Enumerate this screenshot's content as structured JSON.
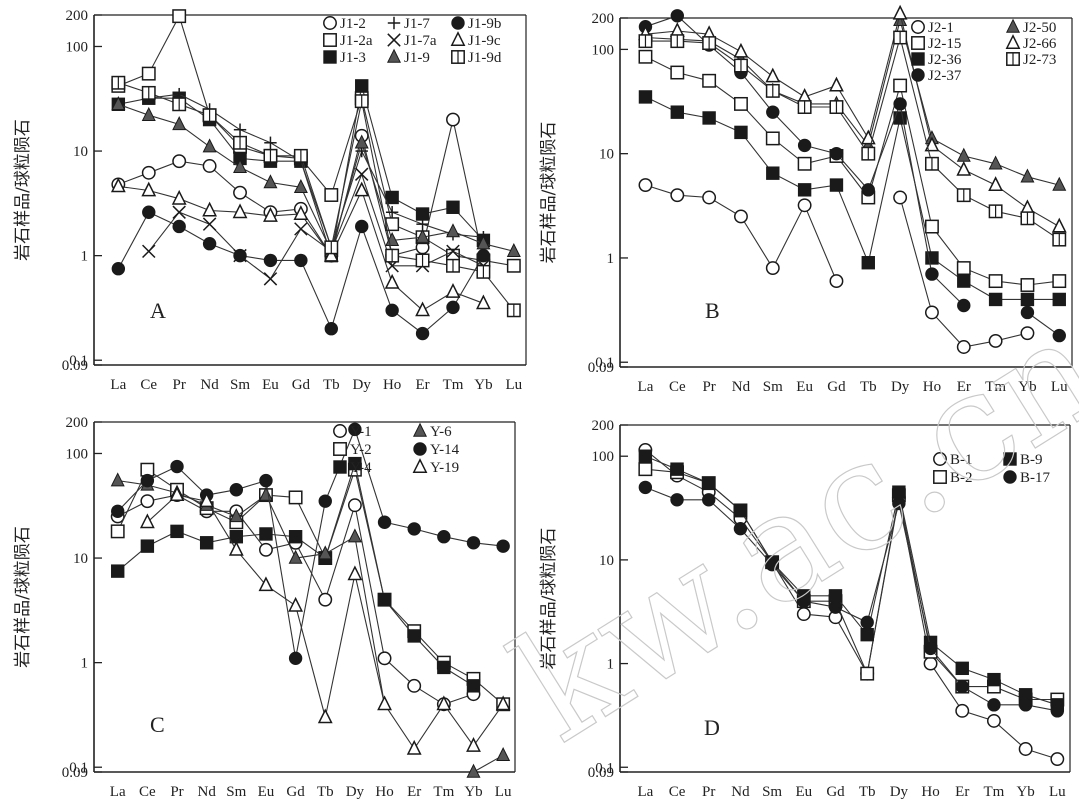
{
  "watermark": "kw.ac.cn",
  "chart_data": [
    {
      "panel": "A",
      "type": "line",
      "ylabel": "岩石样品/球粒陨石",
      "yscale": "log",
      "ylim": [
        0.09,
        200
      ],
      "yticks": [
        0.09,
        0.1,
        1,
        10,
        100,
        200
      ],
      "ytick_labels": [
        "0.09",
        "0.1",
        "1",
        "10",
        "100",
        "200"
      ],
      "categories": [
        "La",
        "Ce",
        "Pr",
        "Nd",
        "Sm",
        "Eu",
        "Gd",
        "Tb",
        "Dy",
        "Ho",
        "Er",
        "Tm",
        "Yb",
        "Lu"
      ],
      "legend_columns": 3,
      "series": [
        {
          "name": "J1-2",
          "marker": "circle-open",
          "values": [
            4.8,
            6.2,
            8.0,
            7.2,
            4.0,
            2.6,
            2.8,
            1.0,
            14,
            1.0,
            1.2,
            20,
            0.9,
            null
          ]
        },
        {
          "name": "J1-2a",
          "marker": "square-open",
          "values": [
            42,
            55,
            195,
            22,
            11,
            9.0,
            8.5,
            3.8,
            32,
            2.0,
            1.5,
            1.0,
            0.9,
            0.8
          ]
        },
        {
          "name": "J1-3",
          "marker": "square-filled",
          "values": [
            28,
            32,
            32,
            20,
            8.5,
            8.0,
            8.0,
            1.0,
            42,
            3.6,
            2.5,
            2.9,
            1.4,
            null
          ]
        },
        {
          "name": "J1-7",
          "marker": "plus",
          "values": [
            null,
            32,
            35,
            25,
            16,
            12,
            8.0,
            1.2,
            10,
            2.6,
            2.0,
            1.6,
            1.5,
            null
          ]
        },
        {
          "name": "J1-7a",
          "marker": "cross",
          "values": [
            null,
            1.1,
            2.6,
            2.0,
            1.0,
            0.6,
            1.8,
            1.1,
            6,
            0.8,
            0.8,
            1.1,
            0.8,
            null
          ]
        },
        {
          "name": "J1-9",
          "marker": "triangle-filled",
          "values": [
            28,
            22,
            18,
            11,
            7.0,
            5.0,
            4.5,
            1.1,
            12,
            1.4,
            1.5,
            1.7,
            1.3,
            1.1
          ]
        },
        {
          "name": "J1-9b",
          "marker": "circle-filled",
          "values": [
            0.75,
            2.6,
            1.9,
            1.3,
            1.0,
            0.9,
            0.9,
            0.2,
            1.9,
            0.3,
            0.18,
            0.32,
            1.0,
            null
          ]
        },
        {
          "name": "J1-9c",
          "marker": "triangle-open",
          "values": [
            4.6,
            4.2,
            3.5,
            2.7,
            2.6,
            2.4,
            2.5,
            1.0,
            4.2,
            0.55,
            0.3,
            0.45,
            0.35,
            null
          ]
        },
        {
          "name": "J1-9d",
          "marker": "square-halved",
          "values": [
            45,
            36,
            28,
            22,
            12,
            9.0,
            9.0,
            1.2,
            30,
            1.0,
            0.9,
            0.8,
            0.7,
            0.3
          ]
        }
      ]
    },
    {
      "panel": "B",
      "type": "line",
      "ylabel": "岩石样品/球粒陨石",
      "yscale": "log",
      "ylim": [
        0.09,
        200
      ],
      "yticks": [
        0.09,
        0.1,
        1,
        10,
        100,
        200
      ],
      "ytick_labels": [
        "0.09",
        "0.1",
        "1",
        "10",
        "100",
        "200"
      ],
      "categories": [
        "La",
        "Ce",
        "Pr",
        "Nd",
        "Sm",
        "Eu",
        "Gd",
        "Tb",
        "Dy",
        "Ho",
        "Er",
        "Tm",
        "Yb",
        "Lu"
      ],
      "legend_columns": 2,
      "series": [
        {
          "name": "J2-1",
          "marker": "circle-open",
          "values": [
            5.0,
            4.0,
            3.8,
            2.5,
            0.8,
            3.2,
            0.6,
            null,
            3.8,
            0.3,
            0.14,
            0.16,
            0.19,
            null
          ]
        },
        {
          "name": "J2-15",
          "marker": "square-open",
          "values": [
            85,
            60,
            50,
            30,
            14,
            8.0,
            9.5,
            3.8,
            45,
            2.0,
            0.8,
            0.6,
            0.55,
            0.6
          ]
        },
        {
          "name": "J2-36",
          "marker": "square-filled",
          "values": [
            35,
            25,
            22,
            16,
            6.5,
            4.5,
            5.0,
            0.9,
            22,
            1.0,
            0.6,
            0.4,
            0.4,
            0.4
          ]
        },
        {
          "name": "J2-37",
          "marker": "circle-filled",
          "values": [
            165,
            210,
            110,
            60,
            25,
            12,
            10,
            4.5,
            30,
            0.7,
            0.35,
            null,
            0.3,
            0.18
          ]
        },
        {
          "name": "J2-50",
          "marker": "triangle-filled",
          "values": [
            130,
            125,
            120,
            80,
            40,
            30,
            30,
            12,
            190,
            14,
            9.5,
            8.0,
            6.0,
            5.0
          ]
        },
        {
          "name": "J2-66",
          "marker": "triangle-open",
          "values": [
            140,
            150,
            140,
            95,
            55,
            35,
            45,
            14,
            220,
            12,
            7.0,
            5.0,
            3.0,
            2.0
          ]
        },
        {
          "name": "J2-73",
          "marker": "square-halved",
          "values": [
            120,
            120,
            115,
            70,
            40,
            28,
            28,
            10,
            130,
            8.0,
            4.0,
            2.8,
            2.4,
            1.5
          ]
        }
      ]
    },
    {
      "panel": "C",
      "type": "line",
      "ylabel": "岩石样品/球粒陨石",
      "yscale": "log",
      "ylim": [
        0.09,
        200
      ],
      "yticks": [
        0.09,
        0.1,
        1,
        10,
        100,
        200
      ],
      "ytick_labels": [
        "0.09",
        "0.1",
        "1",
        "10",
        "100",
        "200"
      ],
      "categories": [
        "La",
        "Ce",
        "Pr",
        "Nd",
        "Sm",
        "Eu",
        "Gd",
        "Tb",
        "Dy",
        "Ho",
        "Er",
        "Tm",
        "Yb",
        "Lu"
      ],
      "legend_columns": 2,
      "series": [
        {
          "name": "Y-1",
          "marker": "circle-open",
          "values": [
            25,
            35,
            40,
            28,
            28,
            12,
            14,
            4.0,
            32,
            1.1,
            0.6,
            0.4,
            0.5,
            null
          ]
        },
        {
          "name": "Y-2",
          "marker": "square-open",
          "values": [
            18,
            70,
            45,
            30,
            22,
            40,
            38,
            10,
            70,
            4.0,
            2.0,
            1.0,
            0.7,
            0.4
          ]
        },
        {
          "name": "Y-4",
          "marker": "square-filled",
          "values": [
            7.5,
            13,
            18,
            14,
            16,
            17,
            16,
            10,
            80,
            4.0,
            1.8,
            0.9,
            0.6,
            null
          ]
        },
        {
          "name": "Y-6",
          "marker": "triangle-filled",
          "values": [
            55,
            50,
            42,
            32,
            25,
            40,
            10,
            11,
            16,
            0.4,
            null,
            null,
            0.09,
            0.13
          ]
        },
        {
          "name": "Y-14",
          "marker": "circle-filled",
          "values": [
            28,
            55,
            75,
            40,
            45,
            55,
            1.1,
            35,
            170,
            22,
            19,
            16,
            14,
            13
          ]
        },
        {
          "name": "Y-19",
          "marker": "triangle-open",
          "values": [
            null,
            22,
            40,
            35,
            12,
            5.5,
            3.5,
            0.3,
            7.0,
            0.4,
            0.15,
            0.4,
            0.16,
            0.4
          ]
        }
      ]
    },
    {
      "panel": "D",
      "type": "line",
      "ylabel": "岩石样品/球粒陨石",
      "yscale": "log",
      "ylim": [
        0.09,
        200
      ],
      "yticks": [
        0.09,
        0.1,
        1,
        10,
        100,
        200
      ],
      "ytick_labels": [
        "0.09",
        "0.1",
        "1",
        "10",
        "100",
        "200"
      ],
      "categories": [
        "La",
        "Ce",
        "Pr",
        "Nd",
        "Sm",
        "Eu",
        "Gd",
        "Tb",
        "Dy",
        "Ho",
        "Er",
        "Tm",
        "Yb",
        "Lu"
      ],
      "legend_columns": 2,
      "series": [
        {
          "name": "B-1",
          "marker": "circle-open",
          "values": [
            115,
            65,
            45,
            25,
            9.5,
            3.0,
            2.8,
            0.8,
            40,
            1.0,
            0.35,
            0.28,
            0.15,
            0.12
          ]
        },
        {
          "name": "B-2",
          "marker": "square-open",
          "values": [
            75,
            70,
            55,
            30,
            9.5,
            4.0,
            4.0,
            0.8,
            42,
            1.3,
            0.6,
            0.6,
            0.45,
            0.45
          ]
        },
        {
          "name": "B-9",
          "marker": "square-filled",
          "values": [
            100,
            75,
            55,
            30,
            9.5,
            4.5,
            4.5,
            1.9,
            45,
            1.6,
            0.9,
            0.7,
            0.5,
            0.4
          ]
        },
        {
          "name": "B-17",
          "marker": "circle-filled",
          "values": [
            50,
            38,
            38,
            20,
            9.0,
            4.0,
            3.5,
            2.5,
            35,
            1.4,
            0.6,
            0.4,
            0.4,
            0.35
          ]
        }
      ]
    }
  ]
}
